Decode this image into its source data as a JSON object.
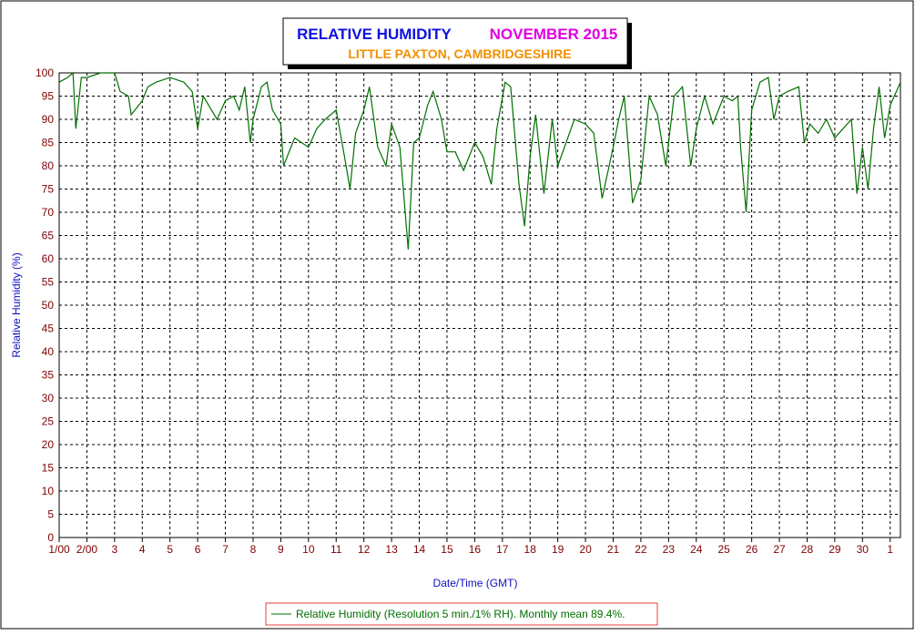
{
  "chart_data": {
    "type": "line",
    "title": "RELATIVE HUMIDITY",
    "title_period": "NOVEMBER 2015",
    "subtitle": "LITTLE PAXTON, CAMBRIDGESHIRE",
    "x_label": "Date/Time (GMT)",
    "y_label": "Relative Humidity (%)",
    "xlim": [
      1,
      31.37
    ],
    "ylim": [
      0,
      100
    ],
    "xticks": [
      {
        "value": 1,
        "label": "1/00"
      },
      {
        "value": 2,
        "label": "2/00"
      },
      3,
      4,
      5,
      6,
      7,
      8,
      9,
      10,
      11,
      12,
      13,
      14,
      15,
      16,
      17,
      18,
      19,
      20,
      21,
      22,
      23,
      24,
      25,
      26,
      27,
      28,
      29,
      30,
      {
        "value": 31,
        "label": "1"
      }
    ],
    "yticks": [
      0,
      5,
      10,
      15,
      20,
      25,
      30,
      35,
      40,
      45,
      50,
      55,
      60,
      65,
      70,
      75,
      80,
      85,
      90,
      95,
      100
    ],
    "grid": true,
    "series": [
      {
        "name": "Relative Humidity (Resolution 5 min./1% RH). Monthly mean 89.4%.",
        "color": "#007000",
        "x": [
          1,
          1.3,
          1.5,
          1.6,
          1.8,
          2,
          2.5,
          3,
          3.2,
          3.5,
          3.6,
          4,
          4.2,
          4.5,
          5,
          5.5,
          5.8,
          6,
          6.2,
          6.5,
          6.7,
          7,
          7.3,
          7.5,
          7.7,
          7.9,
          8,
          8.3,
          8.5,
          8.7,
          9,
          9.1,
          9.5,
          10,
          10.3,
          10.6,
          11,
          11.3,
          11.5,
          11.7,
          12,
          12.2,
          12.5,
          12.8,
          13,
          13.3,
          13.6,
          13.8,
          14,
          14.3,
          14.5,
          14.8,
          15,
          15.3,
          15.6,
          16,
          16.3,
          16.6,
          16.8,
          17.1,
          17.3,
          17.6,
          17.8,
          18,
          18.2,
          18.5,
          18.8,
          19,
          19.3,
          19.6,
          20,
          20.3,
          20.6,
          21,
          21.2,
          21.4,
          21.7,
          22,
          22.3,
          22.6,
          22.9,
          23.2,
          23.5,
          23.8,
          24,
          24.3,
          24.6,
          25,
          25.3,
          25.5,
          25.6,
          25.8,
          26,
          26.3,
          26.6,
          26.8,
          27,
          27.3,
          27.7,
          27.9,
          28.1,
          28.4,
          28.7,
          29,
          29.3,
          29.6,
          29.8,
          30,
          30.2,
          30.4,
          30.6,
          30.8,
          31,
          31.3,
          31.37
        ],
        "values": [
          98,
          99,
          100,
          88,
          99,
          99,
          100,
          100,
          96,
          95,
          91,
          94,
          97,
          98,
          99,
          98,
          96,
          88,
          95,
          92,
          90,
          94,
          95,
          92,
          97,
          85,
          90,
          97,
          98,
          92,
          89,
          80,
          86,
          84,
          88,
          90,
          92,
          82,
          75,
          87,
          92,
          97,
          84,
          80,
          89,
          84,
          62,
          85,
          86,
          93,
          96,
          90,
          83,
          83,
          79,
          85,
          82,
          76,
          88,
          98,
          97,
          76,
          67,
          82,
          91,
          74,
          90,
          80,
          85,
          90,
          89,
          87,
          73,
          84,
          90,
          95,
          72,
          77,
          95,
          91,
          80,
          95,
          97,
          80,
          88,
          95,
          89,
          95,
          94,
          95,
          84,
          70,
          92,
          98,
          99,
          90,
          95,
          96,
          97,
          85,
          89,
          87,
          90,
          86,
          88,
          90,
          74,
          84,
          75,
          88,
          97,
          86,
          93,
          97,
          98
        ]
      }
    ]
  }
}
